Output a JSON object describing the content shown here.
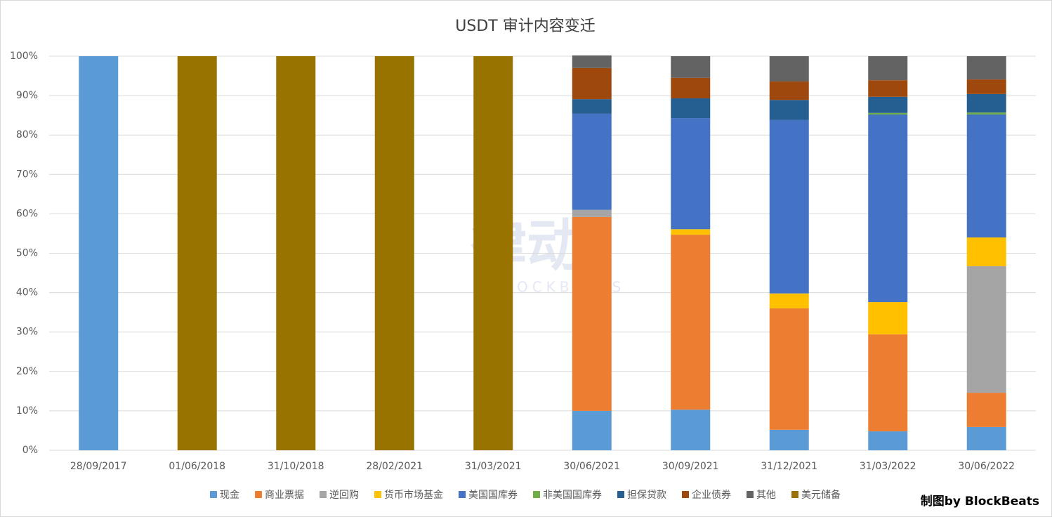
{
  "chart_data": {
    "type": "stacked_bar",
    "title": "USDT 审计内容变迁",
    "categories": [
      "28/09/2017",
      "01/06/2018",
      "31/10/2018",
      "28/02/2021",
      "31/03/2021",
      "30/06/2021",
      "30/09/2021",
      "31/12/2021",
      "31/03/2022",
      "30/06/2022"
    ],
    "series": [
      {
        "name": "现金",
        "color": "#5b9bd5",
        "values": [
          100,
          0,
          0,
          0,
          0,
          10,
          10.3,
          5.2,
          4.8,
          5.9
        ]
      },
      {
        "name": "商业票据",
        "color": "#ed7d31",
        "values": [
          0,
          0,
          0,
          0,
          0,
          49.2,
          44.4,
          30.8,
          24.6,
          8.7
        ]
      },
      {
        "name": "逆回购",
        "color": "#a5a5a5",
        "values": [
          0,
          0,
          0,
          0,
          0,
          1.8,
          0,
          0,
          0,
          32.1
        ]
      },
      {
        "name": "货币市场基金",
        "color": "#ffc000",
        "values": [
          0,
          0,
          0,
          0,
          0,
          0,
          1.4,
          3.8,
          8.2,
          7.3
        ]
      },
      {
        "name": "美国国库券",
        "color": "#4472c4",
        "values": [
          0,
          0,
          0,
          0,
          0,
          24.4,
          28.2,
          44,
          47.6,
          31.2
        ]
      },
      {
        "name": "非美国国库券",
        "color": "#70ad47",
        "values": [
          0,
          0,
          0,
          0,
          0,
          0,
          0,
          0,
          0.4,
          0.5
        ]
      },
      {
        "name": "担保贷款",
        "color": "#255e91",
        "values": [
          0,
          0,
          0,
          0,
          0,
          3.7,
          5,
          5.1,
          4.1,
          4.7
        ]
      },
      {
        "name": "企业债券",
        "color": "#9e480e",
        "values": [
          0,
          0,
          0,
          0,
          0,
          7.9,
          5.2,
          4.7,
          4.2,
          3.7
        ]
      },
      {
        "name": "其他",
        "color": "#636363",
        "values": [
          0,
          0,
          0,
          0,
          0,
          3.2,
          5.5,
          6.4,
          6.1,
          5.9
        ]
      },
      {
        "name": "美元储备",
        "color": "#997300",
        "values": [
          0,
          100,
          100,
          100,
          100,
          0,
          0,
          0,
          0,
          0
        ]
      }
    ],
    "ylim": [
      0,
      100
    ],
    "yticks": [
      {
        "value": 0,
        "label": "0%"
      },
      {
        "value": 10,
        "label": "10%"
      },
      {
        "value": 20,
        "label": "20%"
      },
      {
        "value": 30,
        "label": "30%"
      },
      {
        "value": 40,
        "label": "40%"
      },
      {
        "value": 50,
        "label": "50%"
      },
      {
        "value": 60,
        "label": "60%"
      },
      {
        "value": 70,
        "label": "70%"
      },
      {
        "value": 80,
        "label": "80%"
      },
      {
        "value": 90,
        "label": "90%"
      },
      {
        "value": 100,
        "label": "100%"
      }
    ],
    "grid": true,
    "legend": "bottom",
    "watermark": "律动",
    "watermark_sub": "BLOCKBEATS",
    "credit": "制图by BlockBeats"
  }
}
